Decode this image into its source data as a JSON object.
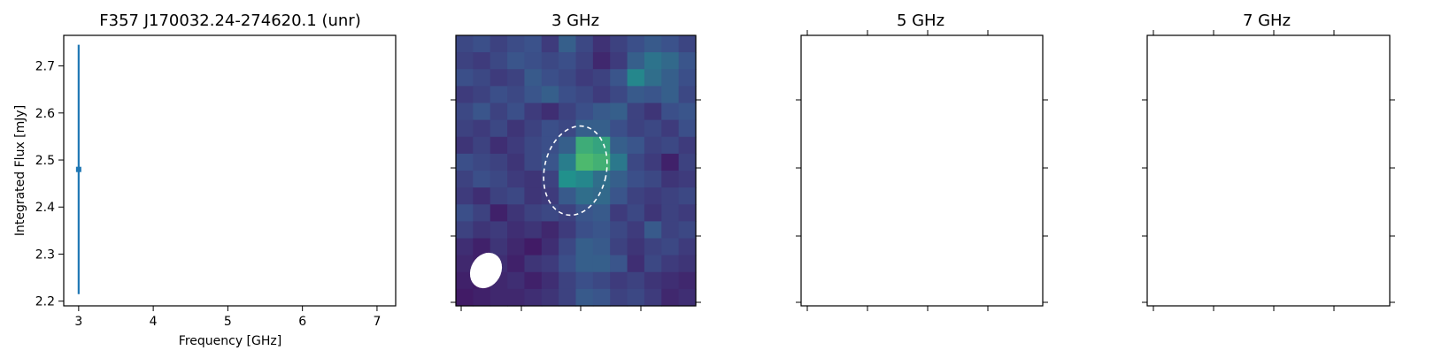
{
  "chart_data": [
    {
      "type": "scatter",
      "title": "F357 J170032.24-274620.1 (unr)",
      "xlabel": "Frequency [GHz]",
      "ylabel": "Integrated Flux [mJy]",
      "xlim": [
        2.8,
        7.25
      ],
      "ylim": [
        2.19,
        2.765
      ],
      "xticks": [
        3,
        4,
        5,
        6,
        7
      ],
      "yticks": [
        2.2,
        2.3,
        2.4,
        2.5,
        2.6,
        2.7
      ],
      "points": [
        {
          "x": 3,
          "y": 2.48,
          "yerr_low": 2.215,
          "yerr_high": 2.745
        }
      ],
      "color": "#1f77b4",
      "grid": false
    },
    {
      "type": "heatmap",
      "title": "3 GHz",
      "colormap": "viridis",
      "source_ellipse": {
        "style": "dashed",
        "color": "#ffffff"
      },
      "beam": {
        "color": "#ffffff"
      },
      "pixels": [
        [
          0.22,
          0.24,
          0.2,
          0.23,
          0.25,
          0.18,
          0.3,
          0.22,
          0.15,
          0.2,
          0.24,
          0.28,
          0.25,
          0.21
        ],
        [
          0.2,
          0.18,
          0.22,
          0.26,
          0.24,
          0.22,
          0.24,
          0.2,
          0.12,
          0.18,
          0.3,
          0.38,
          0.34,
          0.26
        ],
        [
          0.24,
          0.22,
          0.18,
          0.2,
          0.28,
          0.24,
          0.22,
          0.18,
          0.2,
          0.26,
          0.46,
          0.36,
          0.3,
          0.24
        ],
        [
          0.18,
          0.2,
          0.24,
          0.22,
          0.26,
          0.3,
          0.24,
          0.22,
          0.18,
          0.22,
          0.28,
          0.26,
          0.3,
          0.22
        ],
        [
          0.22,
          0.26,
          0.2,
          0.24,
          0.18,
          0.14,
          0.2,
          0.24,
          0.28,
          0.3,
          0.2,
          0.16,
          0.24,
          0.26
        ],
        [
          0.2,
          0.18,
          0.22,
          0.16,
          0.2,
          0.24,
          0.22,
          0.3,
          0.3,
          0.24,
          0.2,
          0.22,
          0.18,
          0.24
        ],
        [
          0.16,
          0.2,
          0.14,
          0.18,
          0.22,
          0.24,
          0.3,
          0.62,
          0.58,
          0.3,
          0.26,
          0.2,
          0.22,
          0.18
        ],
        [
          0.24,
          0.22,
          0.2,
          0.16,
          0.22,
          0.26,
          0.42,
          0.68,
          0.64,
          0.4,
          0.22,
          0.18,
          0.1,
          0.2
        ],
        [
          0.2,
          0.24,
          0.22,
          0.18,
          0.16,
          0.2,
          0.5,
          0.46,
          0.36,
          0.3,
          0.24,
          0.22,
          0.16,
          0.18
        ],
        [
          0.18,
          0.14,
          0.2,
          0.22,
          0.16,
          0.18,
          0.28,
          0.36,
          0.34,
          0.26,
          0.2,
          0.18,
          0.2,
          0.22
        ],
        [
          0.24,
          0.2,
          0.1,
          0.16,
          0.2,
          0.22,
          0.2,
          0.26,
          0.28,
          0.18,
          0.22,
          0.16,
          0.2,
          0.18
        ],
        [
          0.2,
          0.16,
          0.18,
          0.14,
          0.16,
          0.12,
          0.18,
          0.24,
          0.26,
          0.22,
          0.18,
          0.28,
          0.2,
          0.22
        ],
        [
          0.14,
          0.1,
          0.16,
          0.12,
          0.08,
          0.14,
          0.22,
          0.3,
          0.28,
          0.2,
          0.16,
          0.2,
          0.22,
          0.18
        ],
        [
          0.12,
          0.1,
          0.14,
          0.1,
          0.16,
          0.18,
          0.24,
          0.3,
          0.3,
          0.26,
          0.14,
          0.22,
          0.18,
          0.16
        ],
        [
          0.1,
          0.08,
          0.12,
          0.14,
          0.1,
          0.14,
          0.2,
          0.24,
          0.22,
          0.18,
          0.2,
          0.16,
          0.14,
          0.12
        ],
        [
          0.08,
          0.1,
          0.12,
          0.12,
          0.14,
          0.16,
          0.2,
          0.28,
          0.26,
          0.2,
          0.22,
          0.18,
          0.12,
          0.14
        ]
      ]
    },
    {
      "type": "heatmap",
      "title": "5 GHz",
      "pixels": []
    },
    {
      "type": "heatmap",
      "title": "7 GHz",
      "pixels": []
    }
  ]
}
